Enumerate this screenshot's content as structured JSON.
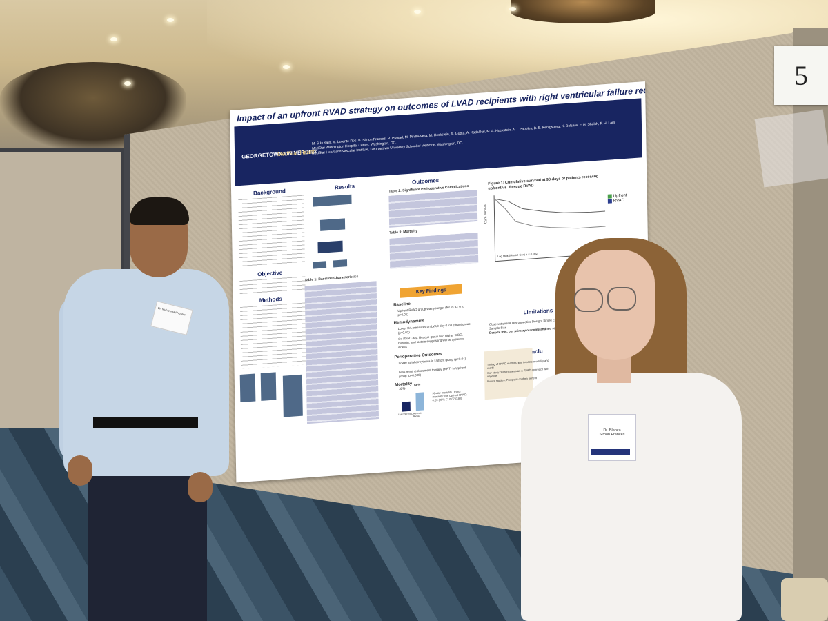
{
  "board": {
    "number": "5"
  },
  "poster": {
    "title": "Impact of an upfront RVAD strategy on outcomes of LVAD recipients with right ventricular failure requiring mechanical support",
    "logo_university": "GEORGETOWN UNIVERSITY",
    "logo_health": "MedStar Health",
    "authors": "M. S Husain, M. Lorente-Ros, B. Simon Frances, R. Prasad, M. Pinilla-Vera, M. Hockstein, R. Gupta, A. Kadakkal, M. A. Hockstein, A. I. Papolos, B. B. Kenigsberg, K. Belsare, F. H. Sheikh, P. H. Lam",
    "affiliation_1": "MedStar Washington Hospital Center, Washington, DC,",
    "affiliation_2": "MedStar Heart and Vascular Institute, Georgetown University School of Medicine, Washington, DC.",
    "sections": {
      "background": "Background",
      "objective": "Objective",
      "methods": "Methods",
      "results": "Results",
      "outcomes": "Outcomes",
      "limitations": "Limitations",
      "conclusions": "Conclu"
    },
    "table1_title": "Table 1: Baseline Characteristics",
    "table2_title": "Table 2: Significant Peri-operative Complications",
    "table3_title": "Table 3: Mortality",
    "figure1_title": "Figure 1: Cumulative survival at 90-days of patients receiving upfront vs. Rescue RVAD",
    "legend": [
      "Upfront",
      "RVAD"
    ],
    "km_axis_label": "Cum survival",
    "km_note": "Log rank (Mantel-Cox) p = 0.002",
    "key_findings": "Key Findings",
    "kf_baseline": "Baseline",
    "kf_baseline_text": "Upfront RVAD group was younger (53 vs 62 yrs, p=0.01)",
    "kf_hemo": "Hemodynamics",
    "kf_hemo_text": "Lower RA pressures on LVAD day 0 in Upfront group (p=0.02)",
    "kf_hemo_text2": "On RVAD day, Rescue group had higher WBC, bilirubin, and lactate suggesting worse systemic illness",
    "kf_periop": "Perioperative Outcomes",
    "kf_periop_text": "Lower atrial arrhythmia in Upfront group (p=0.04)",
    "kf_periop_text2": "Less renal replacement therapy (RRT) in Upfront group (p=0.008)",
    "kf_mortality": "Mortality",
    "mortality_bar_upfront": "33%",
    "mortality_bar_rescue": "68%",
    "mortality_label_upfront": "Upfront RVAD",
    "mortality_label_rescue": "Rescue RVAD",
    "mortality_text": "90-day mortality OR for mortality with Upfront RVAD: 0.23 (95% CI 0.07-0.80)",
    "limitations_text": "Observational & Retrospective Design, Single Experience, Small Sample Size",
    "limitations_text2": "Despite this, our primary outcome and mo remained significant",
    "conclusion_1": "Timing of RVAD matters. Ear impacts mortality and morbi",
    "conclusion_2": "Our study demonstrates an a RVAD approach with improve",
    "conclusion_3": "Future studies: Prospecti confirm benefit"
  },
  "badges": {
    "man": "Dr. Muhammad Husain",
    "woman_line1": "Dr. Blanca",
    "woman_line2": "Simon Frances"
  }
}
